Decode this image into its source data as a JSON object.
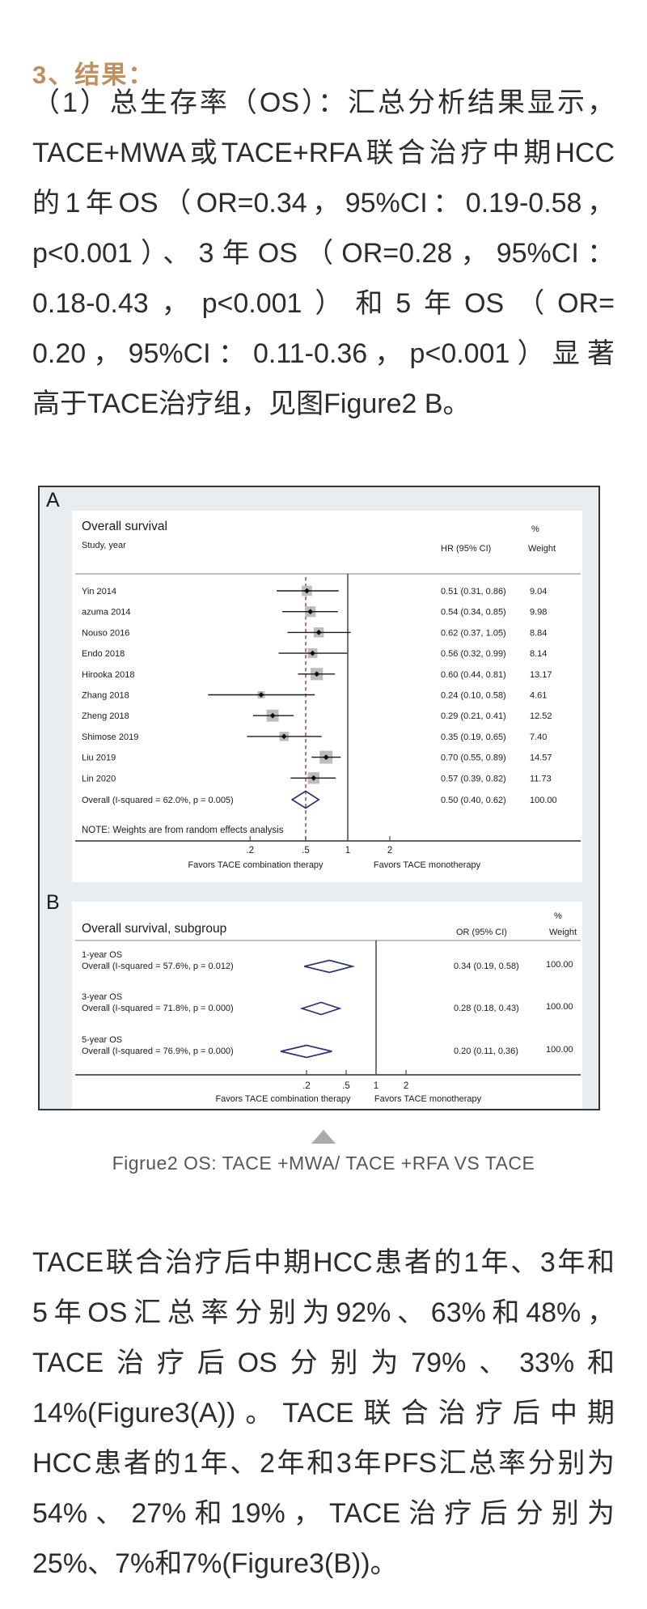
{
  "heading": "3、结果：",
  "paragraphs": {
    "p1": [
      "（1）总生存率（OS）：汇总分析结果显示，",
      "TACE+MWA或TACE+RFA联合治疗中期HCC",
      "的1年OS（OR=0.34，95%CI：0.19-0.58，",
      "p<0.001）、3年OS（OR=0.28，95%CI：",
      "0.18-0.43，p<0.001）和5年OS（OR=",
      "0.20，95%CI：0.11-0.36，p<0.001）显著",
      "高于TACE治疗组，见图Figure2 B。"
    ],
    "p2": [
      "TACE联合治疗后中期HCC患者的1年、3年和",
      "5年OS汇总率分别为92%、63%和48%，",
      "TACE治疗后OS分别为79%、33%和",
      "14%(Figure3(A))。TACE联合治疗后中期",
      "HCC患者的1年、2年和3年PFS汇总率分别为",
      "54%、27%和19%，TACE治疗后分别为",
      "25%、7%和7%(Figure3(B))。"
    ]
  },
  "caption": "Figrue2 OS: TACE +MWA/ TACE +RFA VS TACE",
  "colors": {
    "heading": "#bf8f5e",
    "body_text": "#2d2d2d",
    "caption": "#575757",
    "figure_bg": "#e9edf0",
    "figure_border": "#31363a",
    "ref_line_red": "#b03830",
    "diamond_navy": "#2b3472",
    "marker_gray": "#bdbdbd",
    "triangle_gray": "#ababab"
  },
  "chart_data": [
    {
      "id": "panel_a",
      "type": "forest",
      "panel_label": "A",
      "title": "Overall survival",
      "columns": {
        "study": "Study, year",
        "effect": "HR (95% CI)",
        "pct": "%",
        "weight": "Weight"
      },
      "x_axis": {
        "scale": "log",
        "ticks": [
          0.2,
          0.5,
          1,
          2
        ],
        "tick_labels": [
          ".2",
          ".5",
          "1",
          "2"
        ],
        "ref_line": 0.5,
        "null_line": 1
      },
      "footer": {
        "left": "Favors TACE combination therapy",
        "right": "Favors TACE monotherapy"
      },
      "studies": [
        {
          "label": "Yin 2014",
          "est": 0.51,
          "lo": 0.31,
          "hi": 0.86,
          "effect": "0.51 (0.31, 0.86)",
          "weight": 9.04,
          "weight_text": "9.04"
        },
        {
          "label": "azuma 2014",
          "est": 0.54,
          "lo": 0.34,
          "hi": 0.85,
          "effect": "0.54 (0.34, 0.85)",
          "weight": 9.98,
          "weight_text": "9.98"
        },
        {
          "label": "Nouso 2016",
          "est": 0.62,
          "lo": 0.37,
          "hi": 1.05,
          "effect": "0.62 (0.37, 1.05)",
          "weight": 8.84,
          "weight_text": "8.84"
        },
        {
          "label": "Endo 2018",
          "est": 0.56,
          "lo": 0.32,
          "hi": 0.99,
          "effect": "0.56 (0.32, 0.99)",
          "weight": 8.14,
          "weight_text": "8.14"
        },
        {
          "label": "Hirooka 2018",
          "est": 0.6,
          "lo": 0.44,
          "hi": 0.81,
          "effect": "0.60 (0.44, 0.81)",
          "weight": 13.17,
          "weight_text": "13.17"
        },
        {
          "label": "Zhang 2018",
          "est": 0.24,
          "lo": 0.1,
          "hi": 0.58,
          "effect": "0.24 (0.10, 0.58)",
          "weight": 4.61,
          "weight_text": "4.61"
        },
        {
          "label": "Zheng 2018",
          "est": 0.29,
          "lo": 0.21,
          "hi": 0.41,
          "effect": "0.29 (0.21, 0.41)",
          "weight": 12.52,
          "weight_text": "12.52"
        },
        {
          "label": "Shimose 2019",
          "est": 0.35,
          "lo": 0.19,
          "hi": 0.65,
          "effect": "0.35 (0.19, 0.65)",
          "weight": 7.4,
          "weight_text": "7.40"
        },
        {
          "label": "Liu 2019",
          "est": 0.7,
          "lo": 0.55,
          "hi": 0.89,
          "effect": "0.70 (0.55, 0.89)",
          "weight": 14.57,
          "weight_text": "14.57"
        },
        {
          "label": "Lin 2020",
          "est": 0.57,
          "lo": 0.39,
          "hi": 0.82,
          "effect": "0.57 (0.39, 0.82)",
          "weight": 11.73,
          "weight_text": "11.73"
        }
      ],
      "overall": {
        "label": "Overall  (I-squared = 62.0%, p = 0.005)",
        "est": 0.5,
        "lo": 0.4,
        "hi": 0.62,
        "effect": "0.50 (0.40, 0.62)",
        "weight_text": "100.00"
      },
      "note": "NOTE: Weights are from random effects analysis"
    },
    {
      "id": "panel_b",
      "type": "forest",
      "panel_label": "B",
      "title": "Overall survival, subgroup",
      "columns": {
        "effect": "OR (95% CI)",
        "pct": "%",
        "weight": "Weight"
      },
      "x_axis": {
        "scale": "log",
        "ticks": [
          0.2,
          0.5,
          1,
          2
        ],
        "tick_labels": [
          ".2",
          ".5",
          "1",
          "2"
        ],
        "null_line": 1
      },
      "footer": {
        "left": "Favors TACE combination therapy",
        "right": "Favors TACE monotherapy"
      },
      "groups": [
        {
          "name": "1-year OS",
          "label": "Overall  (I-squared = 57.6%, p = 0.012)",
          "est": 0.34,
          "lo": 0.19,
          "hi": 0.58,
          "effect": "0.34 (0.19, 0.58)",
          "weight_text": "100.00"
        },
        {
          "name": "3-year OS",
          "label": "Overall  (I-squared = 71.8%, p = 0.000)",
          "est": 0.28,
          "lo": 0.18,
          "hi": 0.43,
          "effect": "0.28 (0.18, 0.43)",
          "weight_text": "100.00"
        },
        {
          "name": "5-year OS",
          "label": "Overall  (I-squared = 76.9%, p = 0.000)",
          "est": 0.2,
          "lo": 0.11,
          "hi": 0.36,
          "effect": "0.20 (0.11, 0.36)",
          "weight_text": "100.00"
        }
      ]
    }
  ]
}
